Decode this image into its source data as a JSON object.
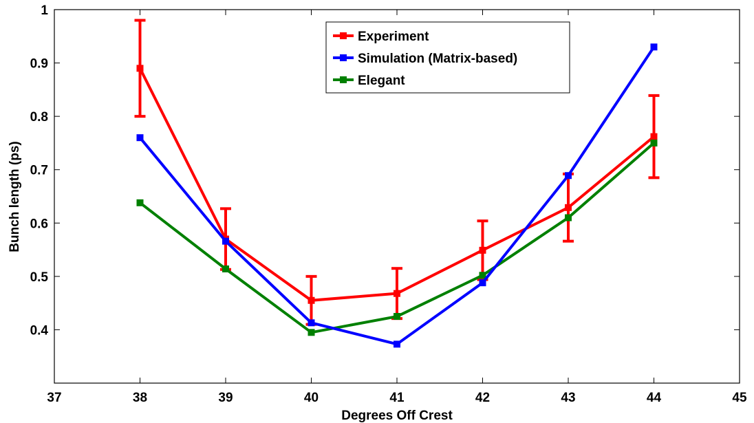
{
  "chart_data": {
    "type": "line",
    "title": "",
    "xlabel": "Degrees Off Crest",
    "ylabel": "Bunch length (ps)",
    "xlim": [
      37,
      45
    ],
    "ylim": [
      0.3,
      1.0
    ],
    "xticks": [
      37,
      38,
      39,
      40,
      41,
      42,
      43,
      44,
      45
    ],
    "yticks": [
      0.4,
      0.5,
      0.6,
      0.7,
      0.8,
      0.9,
      1
    ],
    "ytick_labels": [
      "0.4",
      "0.5",
      "0.6",
      "0.7",
      "0.8",
      "0.9",
      "1"
    ],
    "grid": false,
    "legend_position": "top-center",
    "series": [
      {
        "name": "Experiment",
        "color": "#ff0000",
        "marker": "square",
        "x": [
          38,
          39,
          40,
          41,
          42,
          43,
          44
        ],
        "y": [
          0.89,
          0.57,
          0.455,
          0.468,
          0.549,
          0.629,
          0.762
        ],
        "error": [
          0.09,
          0.057,
          0.045,
          0.047,
          0.055,
          0.063,
          0.077
        ]
      },
      {
        "name": "Simulation (Matrix-based)",
        "color": "#0000ff",
        "marker": "square",
        "x": [
          38,
          39,
          40,
          41,
          42,
          43,
          44
        ],
        "y": [
          0.76,
          0.566,
          0.413,
          0.373,
          0.488,
          0.689,
          0.93
        ]
      },
      {
        "name": "Elegant",
        "color": "#008000",
        "marker": "square",
        "x": [
          38,
          39,
          40,
          41,
          42,
          43,
          44
        ],
        "y": [
          0.638,
          0.514,
          0.395,
          0.425,
          0.502,
          0.61,
          0.75
        ]
      }
    ]
  }
}
